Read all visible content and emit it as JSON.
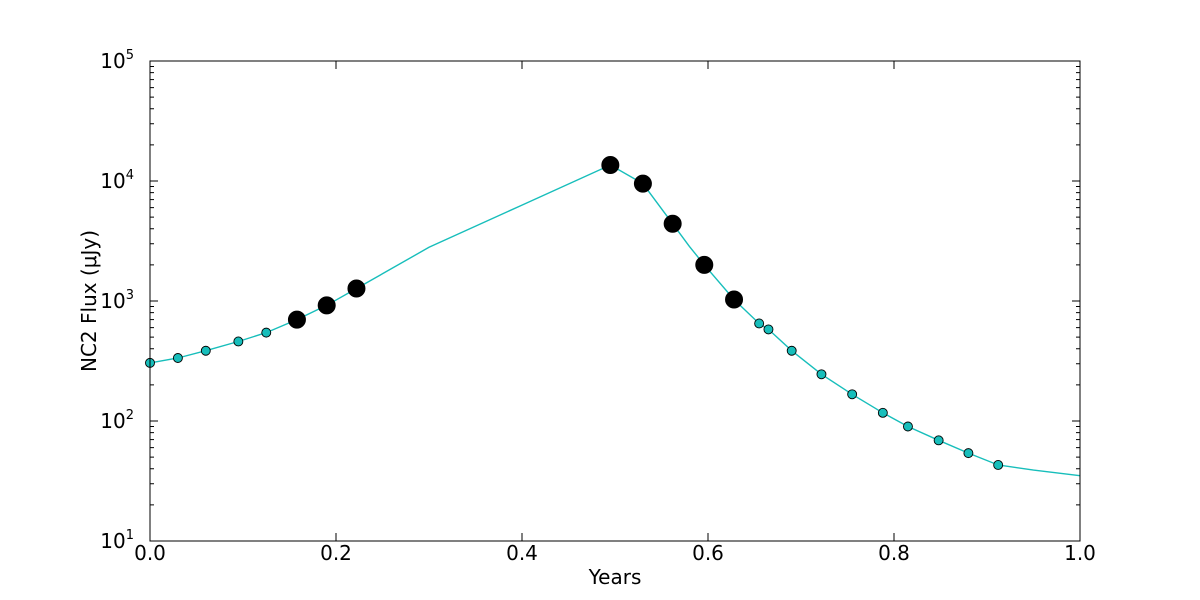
{
  "chart_data": {
    "type": "line",
    "xlabel": "Years",
    "ylabel": "NC2 Flux (μJy)",
    "xlim": [
      0.0,
      1.0
    ],
    "ylim": [
      10,
      100000
    ],
    "yscale": "log",
    "grid": false,
    "legend": "none",
    "line_color": "#17bebb",
    "x_tick_labels": [
      "0.0",
      "0.2",
      "0.4",
      "0.6",
      "0.8",
      "1.0"
    ],
    "y_tick_labels": [
      {
        "base": "10",
        "exp": "1"
      },
      {
        "base": "10",
        "exp": "2"
      },
      {
        "base": "10",
        "exp": "3"
      },
      {
        "base": "10",
        "exp": "4"
      },
      {
        "base": "10",
        "exp": "5"
      }
    ],
    "model_curve": {
      "x": [
        0.0,
        0.03,
        0.06,
        0.095,
        0.125,
        0.158,
        0.19,
        0.222,
        0.3,
        0.4,
        0.495,
        0.53,
        0.562,
        0.58,
        0.596,
        0.628,
        0.655,
        0.665,
        0.69,
        0.722,
        0.755,
        0.788,
        0.815,
        0.848,
        0.88,
        0.912,
        0.95,
        1.0
      ],
      "y": [
        305,
        335,
        385,
        460,
        545,
        700,
        920,
        1270,
        2800,
        6300,
        13600,
        9500,
        4400,
        2850,
        2000,
        1030,
        650,
        580,
        385,
        245,
        167,
        117,
        90,
        69,
        54,
        43,
        39,
        35
      ]
    },
    "small_markers": {
      "color": "#17bebb",
      "x": [
        0.0,
        0.03,
        0.06,
        0.095,
        0.125,
        0.655,
        0.665,
        0.69,
        0.722,
        0.755,
        0.788,
        0.815,
        0.848,
        0.88,
        0.912
      ],
      "y": [
        305,
        335,
        385,
        460,
        545,
        650,
        580,
        385,
        245,
        167,
        117,
        90,
        69,
        54,
        43
      ]
    },
    "large_markers": {
      "color": "#000000",
      "x": [
        0.158,
        0.19,
        0.222,
        0.495,
        0.53,
        0.562,
        0.596,
        0.628
      ],
      "y": [
        700,
        920,
        1270,
        13600,
        9500,
        4400,
        2000,
        1030
      ]
    }
  }
}
